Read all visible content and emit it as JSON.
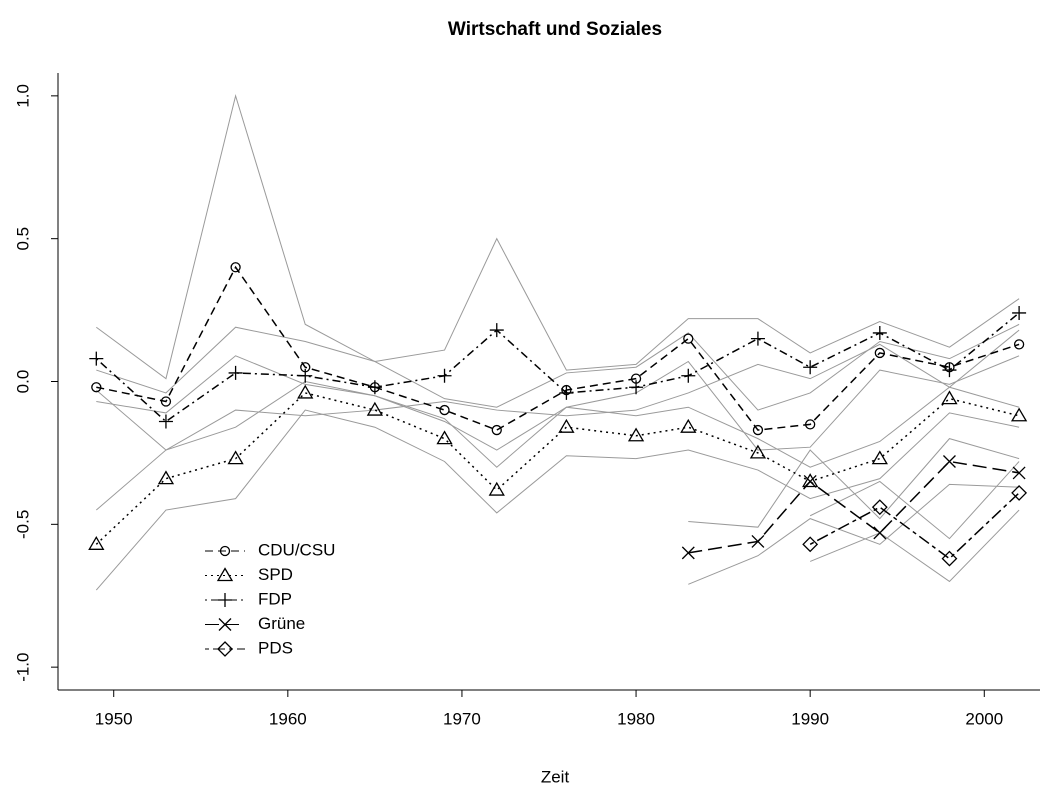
{
  "chart_data": {
    "type": "line",
    "title": "Wirtschaft und Soziales",
    "x_label": "Zeit",
    "xlim": [
      1946.8,
      2003.2
    ],
    "xticks": [
      1950,
      1960,
      1970,
      1980,
      1990,
      2000
    ],
    "ylim": [
      -1.08,
      1.08
    ],
    "yticks": [
      {
        "value": -1,
        "label": "-1.0"
      },
      -0.5,
      {
        "value": 0,
        "label": "0.0"
      },
      0.5,
      {
        "value": 1,
        "label": "1.0"
      }
    ],
    "band_color": "#9a9a9a",
    "series": [
      {
        "name": "CDU/CSU",
        "color": "#000000",
        "dash": "dashed",
        "marker": "circle",
        "x": [
          1949,
          1953,
          1957,
          1961,
          1965,
          1969,
          1972,
          1976,
          1980,
          1983,
          1987,
          1990,
          1994,
          1998,
          2002
        ],
        "values": [
          -0.02,
          -0.07,
          0.4,
          0.05,
          -0.02,
          -0.1,
          -0.17,
          -0.03,
          0.01,
          0.15,
          -0.17,
          -0.15,
          0.1,
          0.05,
          0.13
        ],
        "upper": [
          0.04,
          -0.04,
          0.19,
          0.14,
          0.07,
          -0.06,
          -0.09,
          0.03,
          0.05,
          0.17,
          -0.1,
          -0.04,
          0.14,
          0.08,
          0.2
        ],
        "lower": [
          -0.07,
          -0.11,
          0.09,
          -0.01,
          -0.05,
          -0.14,
          -0.24,
          -0.09,
          -0.04,
          0.07,
          -0.24,
          -0.23,
          0.04,
          -0.01,
          0.09
        ]
      },
      {
        "name": "SPD",
        "color": "#000000",
        "dash": "dotted",
        "marker": "triangle",
        "x": [
          1949,
          1953,
          1957,
          1961,
          1965,
          1969,
          1972,
          1976,
          1980,
          1983,
          1987,
          1990,
          1994,
          1998,
          2002
        ],
        "values": [
          -0.57,
          -0.34,
          -0.27,
          -0.04,
          -0.1,
          -0.2,
          -0.38,
          -0.16,
          -0.19,
          -0.16,
          -0.25,
          -0.35,
          -0.27,
          -0.06,
          -0.12
        ],
        "upper": [
          -0.45,
          -0.24,
          -0.16,
          0.0,
          -0.05,
          -0.13,
          -0.3,
          -0.09,
          -0.12,
          -0.09,
          -0.2,
          -0.3,
          -0.21,
          -0.02,
          -0.09
        ],
        "lower": [
          -0.73,
          -0.45,
          -0.41,
          -0.1,
          -0.16,
          -0.28,
          -0.46,
          -0.26,
          -0.27,
          -0.24,
          -0.31,
          -0.41,
          -0.34,
          -0.11,
          -0.16
        ]
      },
      {
        "name": "FDP",
        "color": "#000000",
        "dash": "dotdash",
        "marker": "plus",
        "x": [
          1949,
          1953,
          1957,
          1961,
          1965,
          1969,
          1972,
          1976,
          1980,
          1983,
          1987,
          1990,
          1994,
          1998,
          2002
        ],
        "values": [
          0.08,
          -0.14,
          0.03,
          0.02,
          -0.02,
          0.02,
          0.18,
          -0.04,
          -0.02,
          0.02,
          0.15,
          0.05,
          0.17,
          0.04,
          0.24
        ],
        "upper": [
          0.19,
          0.01,
          1.0,
          0.2,
          0.07,
          0.11,
          0.5,
          0.04,
          0.06,
          0.22,
          0.22,
          0.1,
          0.21,
          0.12,
          0.29
        ],
        "lower": [
          -0.03,
          -0.24,
          -0.1,
          -0.12,
          -0.1,
          -0.07,
          -0.1,
          -0.12,
          -0.1,
          -0.04,
          0.06,
          0.01,
          0.13,
          -0.02,
          0.18
        ]
      },
      {
        "name": "Grüne",
        "color": "#000000",
        "dash": "longdash",
        "marker": "cross",
        "x": [
          1983,
          1987,
          1990,
          1994,
          1998,
          2002
        ],
        "values": [
          -0.6,
          -0.56,
          -0.35,
          -0.53,
          -0.28,
          -0.32
        ],
        "upper": [
          -0.49,
          -0.51,
          -0.24,
          -0.48,
          -0.2,
          -0.27
        ],
        "lower": [
          -0.71,
          -0.61,
          -0.48,
          -0.57,
          -0.36,
          -0.37
        ]
      },
      {
        "name": "PDS",
        "color": "#000000",
        "dash": "twodash",
        "marker": "diamond",
        "x": [
          1990,
          1994,
          1998,
          2002
        ],
        "values": [
          -0.57,
          -0.44,
          -0.62,
          -0.39
        ],
        "upper": [
          -0.47,
          -0.35,
          -0.55,
          -0.28
        ],
        "lower": [
          -0.63,
          -0.53,
          -0.7,
          -0.45
        ]
      }
    ]
  }
}
